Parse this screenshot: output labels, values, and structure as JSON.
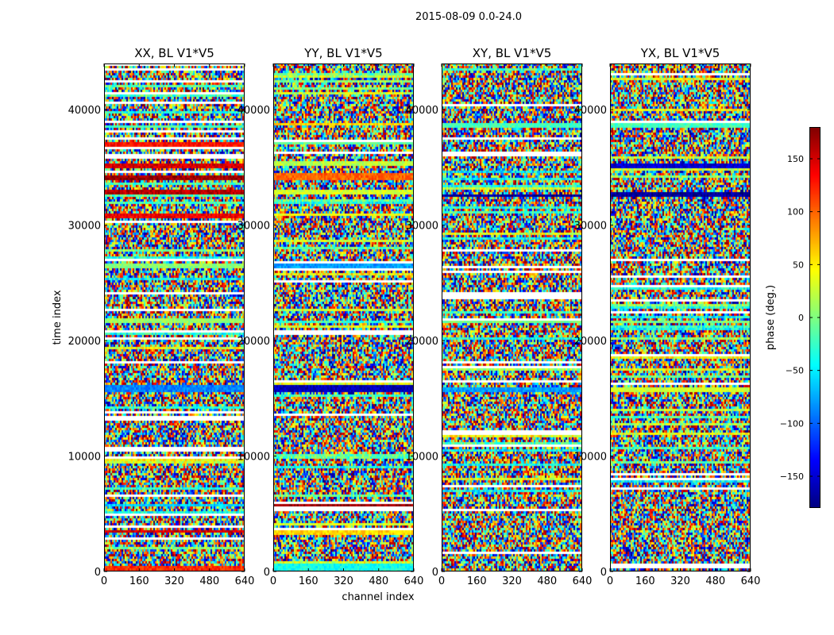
{
  "chart_data": {
    "type": "heatmap",
    "suptitle": "2015-08-09 0.0-24.0",
    "colormap": "jet",
    "xlabel": "channel index",
    "ylabel": "time index",
    "xlim": [
      0,
      640
    ],
    "ylim": [
      0,
      44000
    ],
    "xticks": [
      0,
      160,
      320,
      480,
      640
    ],
    "yticks": [
      0,
      10000,
      20000,
      30000,
      40000
    ],
    "xtick_labels": [
      "0",
      "160",
      "320",
      "480",
      "640"
    ],
    "ytick_labels": [
      "0",
      "10000",
      "20000",
      "30000",
      "40000"
    ],
    "panels": [
      {
        "title": "XX, BL V1*V5",
        "bands": [
          {
            "t": 300,
            "h": 500,
            "v": 120
          },
          {
            "t": 3600,
            "h": 250,
            "v": 150
          },
          {
            "t": 5800,
            "h": 300,
            "v": -60
          },
          {
            "t": 15900,
            "h": 700,
            "v": -90
          },
          {
            "t": 21800,
            "h": 500,
            "v": 10
          },
          {
            "t": 26500,
            "h": 400,
            "v": 5
          },
          {
            "t": 30900,
            "h": 300,
            "v": 140
          },
          {
            "t": 32900,
            "h": 400,
            "v": 160
          },
          {
            "t": 34200,
            "h": 500,
            "v": 170
          },
          {
            "t": 35300,
            "h": 400,
            "v": 150
          },
          {
            "t": 37100,
            "h": 300,
            "v": 130
          },
          {
            "t": 38600,
            "h": 300,
            "v": -20
          }
        ]
      },
      {
        "title": "YY, BL V1*V5",
        "bands": [
          {
            "t": 500,
            "h": 600,
            "v": -40
          },
          {
            "t": 3400,
            "h": 400,
            "v": 60
          },
          {
            "t": 4200,
            "h": 300,
            "v": 30
          },
          {
            "t": 5900,
            "h": 300,
            "v": 170
          },
          {
            "t": 15900,
            "h": 700,
            "v": -160
          },
          {
            "t": 26500,
            "h": 400,
            "v": -80
          },
          {
            "t": 31000,
            "h": 400,
            "v": 40
          },
          {
            "t": 33000,
            "h": 300,
            "v": 30
          },
          {
            "t": 34300,
            "h": 500,
            "v": 100
          },
          {
            "t": 35500,
            "h": 400,
            "v": 20
          },
          {
            "t": 37200,
            "h": 300,
            "v": -10
          },
          {
            "t": 38800,
            "h": 300,
            "v": 60
          }
        ]
      },
      {
        "title": "XY, BL V1*V5",
        "bands": [
          {
            "t": 15900,
            "h": 500,
            "v": -80
          },
          {
            "t": 21700,
            "h": 300,
            "v": 0
          },
          {
            "t": 32700,
            "h": 300,
            "v": -170
          },
          {
            "t": 38700,
            "h": 300,
            "v": -20
          }
        ]
      },
      {
        "title": "YX, BL V1*V5",
        "bands": [
          {
            "t": 15900,
            "h": 500,
            "v": 30
          },
          {
            "t": 21700,
            "h": 300,
            "v": 0
          },
          {
            "t": 32700,
            "h": 400,
            "v": -170
          },
          {
            "t": 35200,
            "h": 300,
            "v": -150
          },
          {
            "t": 38700,
            "h": 300,
            "v": -20
          }
        ]
      }
    ],
    "colorbar": {
      "label": "phase (deg.)",
      "range": [
        -180,
        180
      ],
      "ticks": [
        -150,
        -100,
        -50,
        0,
        50,
        100,
        150
      ],
      "tick_labels": [
        "−150",
        "−100",
        "−50",
        "0",
        "50",
        "100",
        "150"
      ]
    }
  }
}
